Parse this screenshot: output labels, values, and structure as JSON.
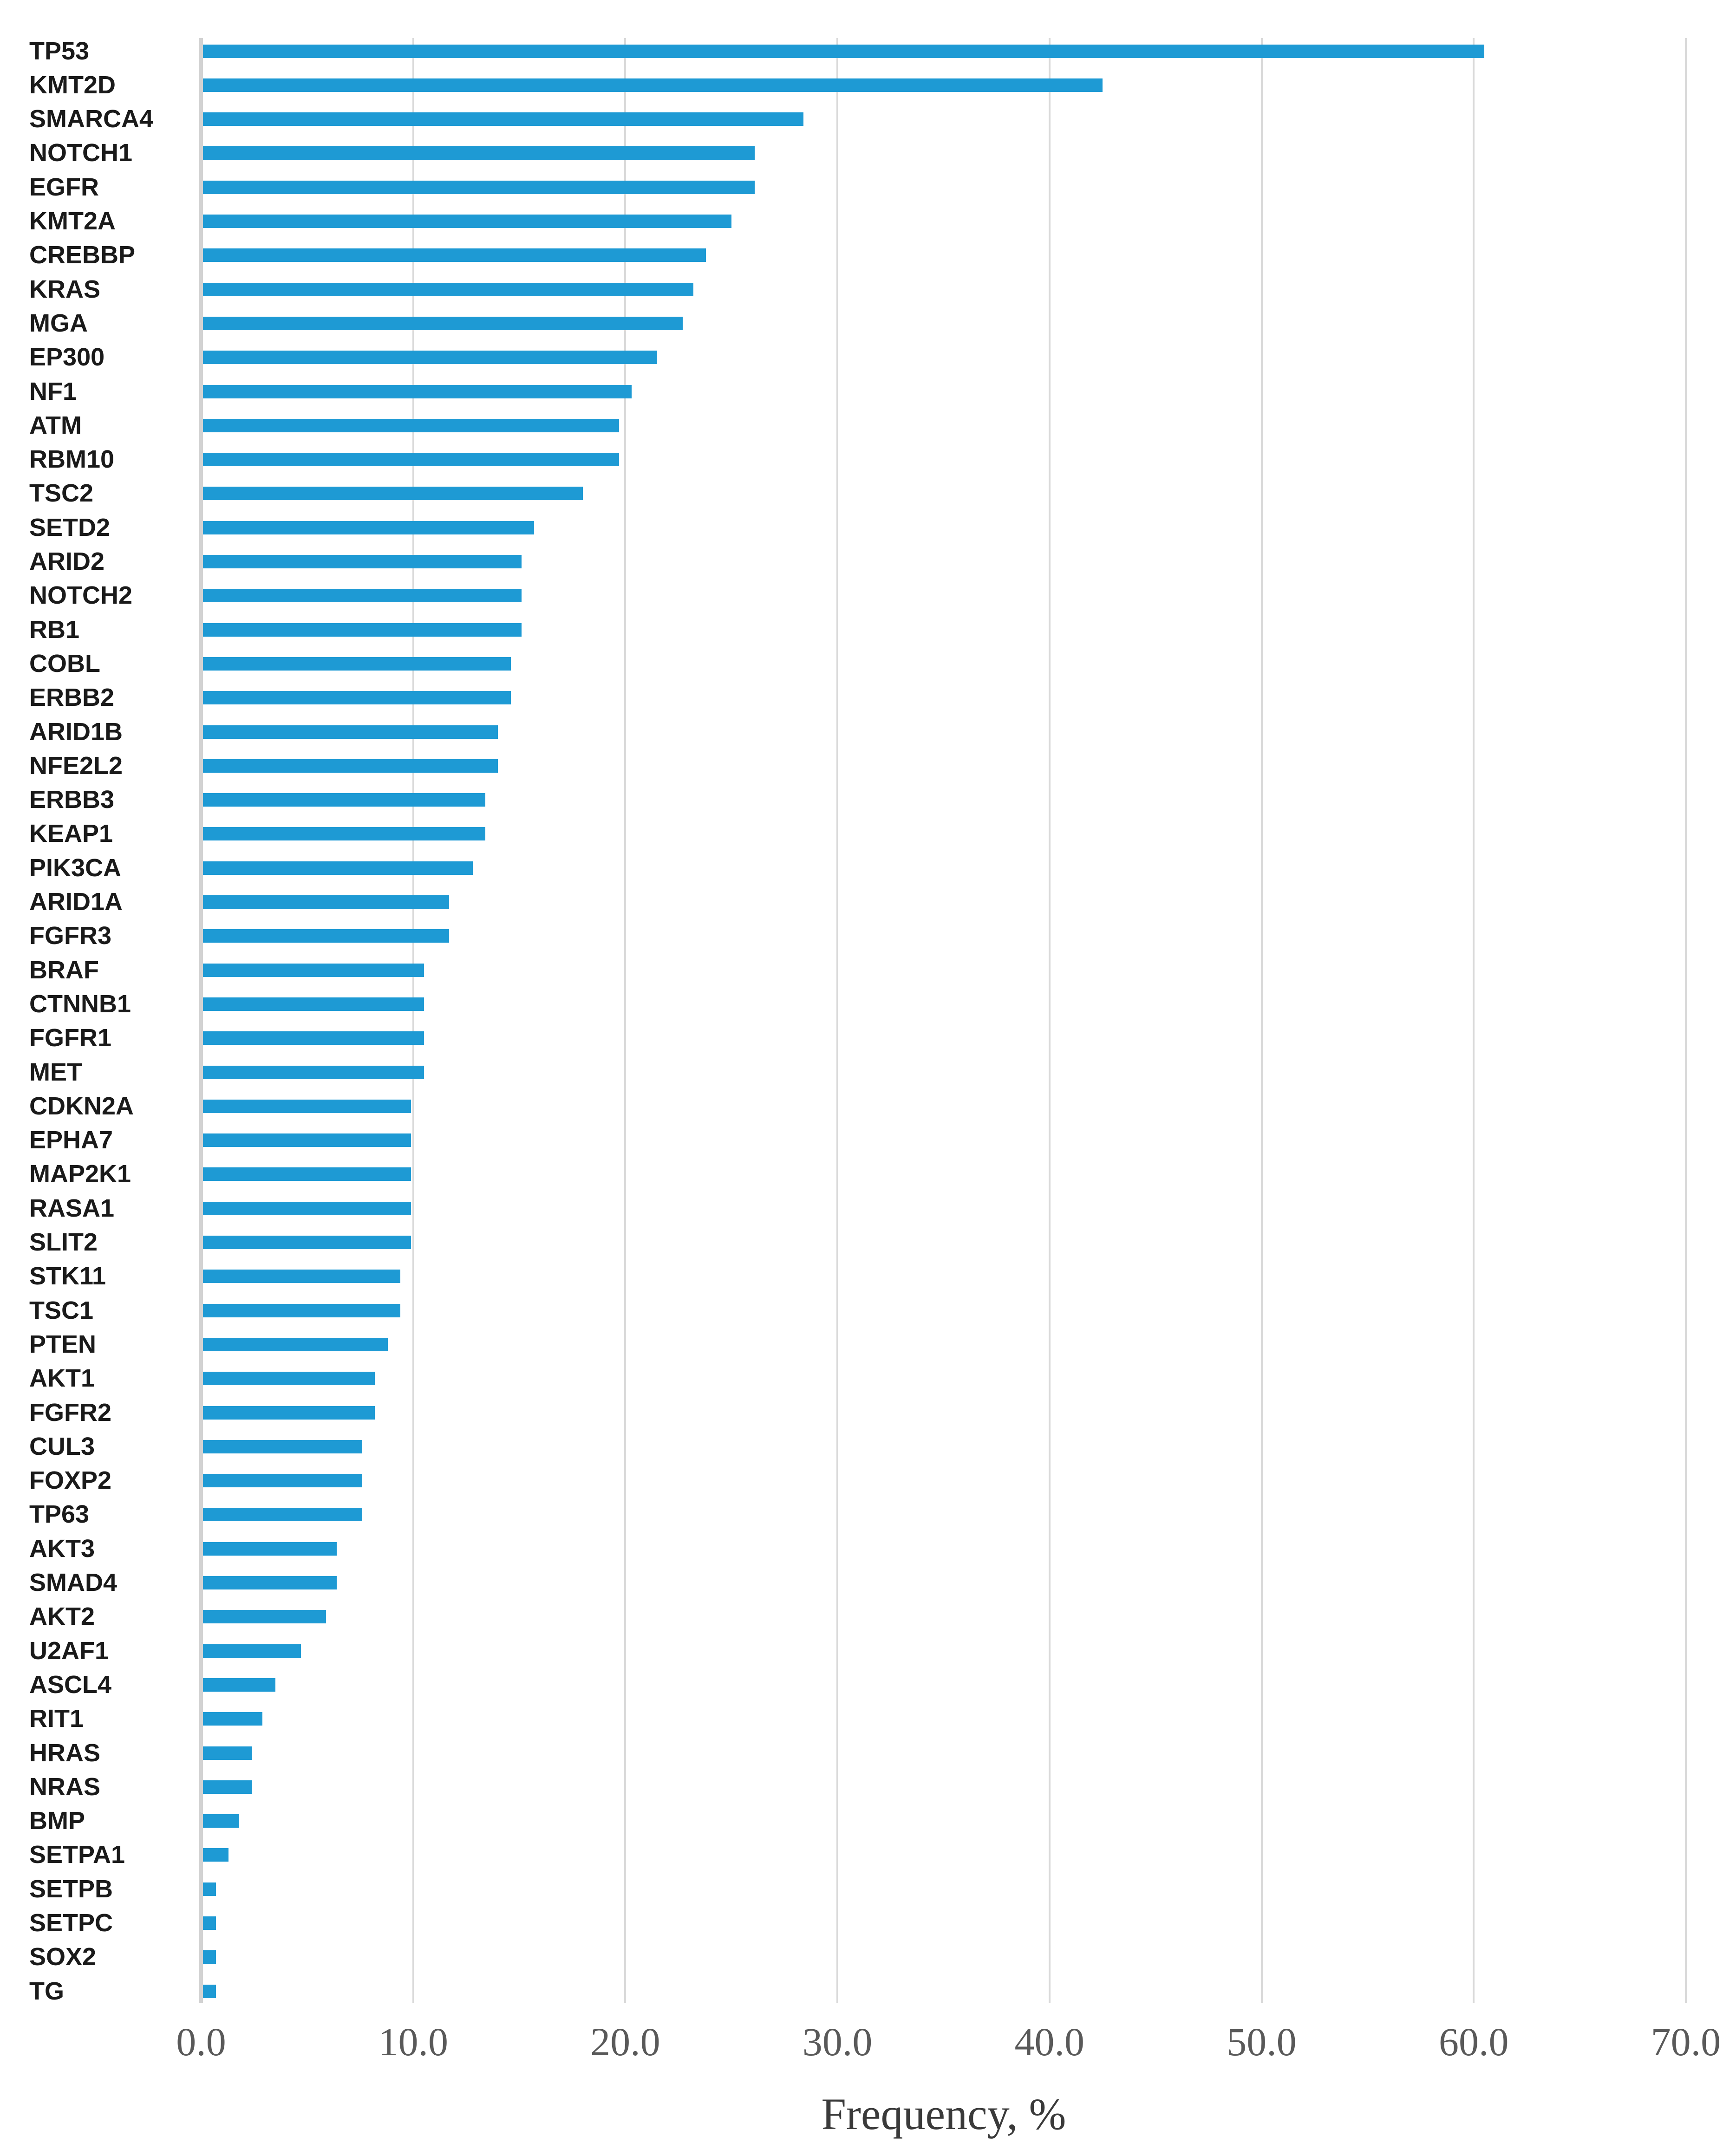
{
  "chart_data": {
    "type": "bar",
    "orientation": "horizontal",
    "title": "",
    "xlabel": "Frequency, %",
    "ylabel": "",
    "xlim": [
      0,
      70
    ],
    "xticks": [
      0,
      10,
      20,
      30,
      40,
      50,
      60,
      70
    ],
    "xtick_labels": [
      "0.0",
      "10.0",
      "20.0",
      "30.0",
      "40.0",
      "50.0",
      "60.0",
      "70.0"
    ],
    "grid": "vertical-gridlines-on",
    "legend": "none",
    "bar_color": "#1e9ad4",
    "gridline_color": "#d9d9d9",
    "axis_line_color": "#d2d2d2",
    "tick_text_color": "#595959",
    "label_text_color": "#1a1a1a",
    "categories": [
      "TP53",
      "KMT2D",
      "SMARCA4",
      "NOTCH1",
      "EGFR",
      "KMT2A",
      "CREBBP",
      "KRAS",
      "MGA",
      "EP300",
      "NF1",
      "ATM",
      "RBM10",
      "TSC2",
      "SETD2",
      "ARID2",
      "NOTCH2",
      "RB1",
      "COBL",
      "ERBB2",
      "ARID1B",
      "NFE2L2",
      "ERBB3",
      "KEAP1",
      "PIK3CA",
      "ARID1A",
      "FGFR3",
      "BRAF",
      "CTNNB1",
      "FGFR1",
      "MET",
      "CDKN2A",
      "EPHA7",
      "MAP2K1",
      "RASA1",
      "SLIT2",
      "STK11",
      "TSC1",
      "PTEN",
      "AKT1",
      "FGFR2",
      "CUL3",
      "FOXP2",
      "TP63",
      "AKT3",
      "SMAD4",
      "AKT2",
      "U2AF1",
      "ASCL4",
      "RIT1",
      "HRAS",
      "NRAS",
      "BMP",
      "SETPA1",
      "SETPB",
      "SETPC",
      "SOX2",
      "TG"
    ],
    "values": [
      60.5,
      42.5,
      28.4,
      26.1,
      26.1,
      25.0,
      23.8,
      23.2,
      22.7,
      21.5,
      20.3,
      19.7,
      19.7,
      18.0,
      15.7,
      15.1,
      15.1,
      15.1,
      14.6,
      14.6,
      14.0,
      14.0,
      13.4,
      13.4,
      12.8,
      11.7,
      11.7,
      10.5,
      10.5,
      10.5,
      10.5,
      9.9,
      9.9,
      9.9,
      9.9,
      9.9,
      9.4,
      9.4,
      8.8,
      8.2,
      8.2,
      7.6,
      7.6,
      7.6,
      6.4,
      6.4,
      5.9,
      4.7,
      3.5,
      2.9,
      2.4,
      2.4,
      1.8,
      1.3,
      0.7,
      0.7,
      0.7,
      0.7
    ]
  }
}
